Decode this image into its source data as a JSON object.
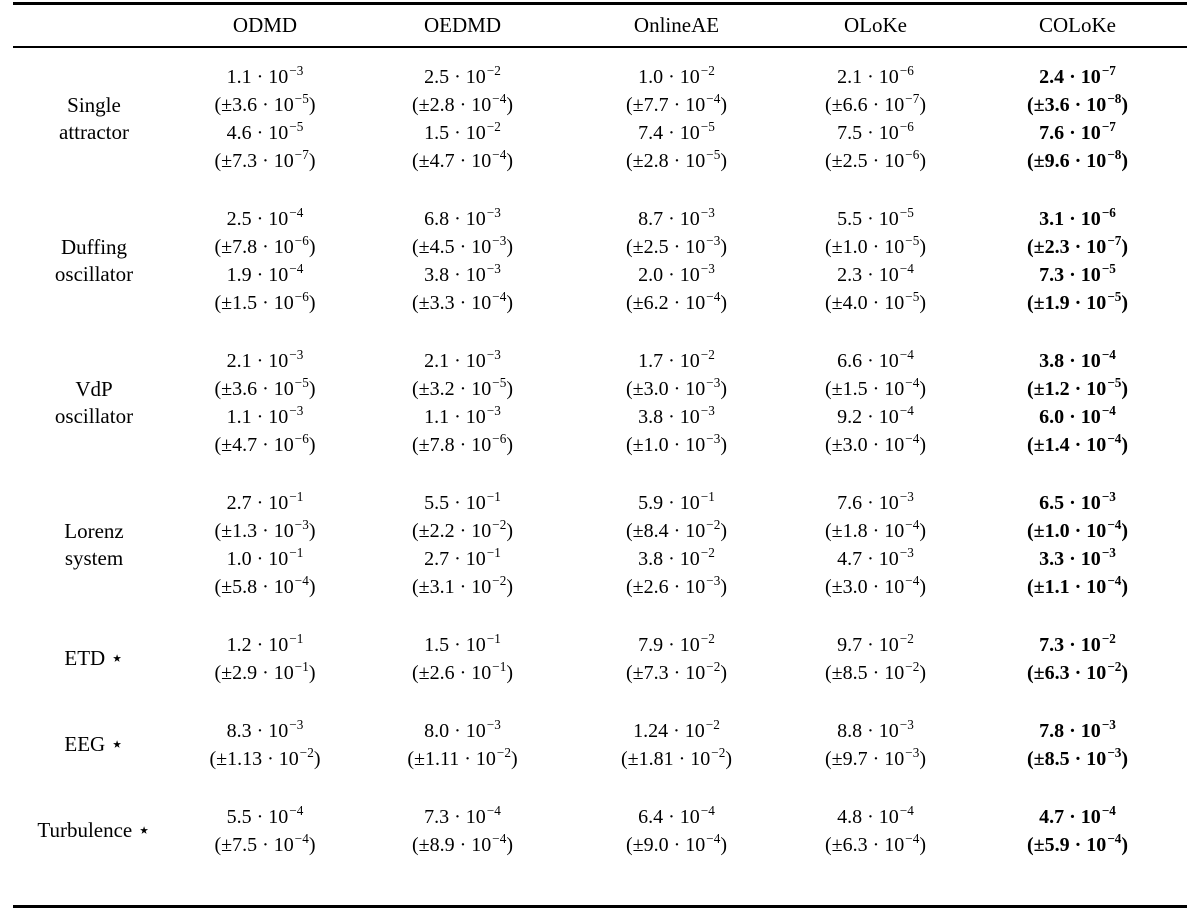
{
  "colors": {
    "background": "#ffffff",
    "text": "#000000",
    "rule": "#000000"
  },
  "table": {
    "columns": [
      "ODMD",
      "OEDMD",
      "OnlineAE",
      "OLoKe",
      "COLoKe"
    ],
    "bold_column": "COLoKe",
    "bold_column_index": 4,
    "rows": [
      {
        "label": "Single attractor",
        "label_lines": [
          "Single",
          "attractor"
        ],
        "cols": [
          [
            {
              "v": "1.1",
              "x": "-3"
            },
            {
              "v": "3.6",
              "x": "-5",
              "pm": true
            },
            {
              "v": "4.6",
              "x": "-5"
            },
            {
              "v": "7.3",
              "x": "-7",
              "pm": true
            }
          ],
          [
            {
              "v": "2.5",
              "x": "-2"
            },
            {
              "v": "2.8",
              "x": "-4",
              "pm": true
            },
            {
              "v": "1.5",
              "x": "-2"
            },
            {
              "v": "4.7",
              "x": "-4",
              "pm": true
            }
          ],
          [
            {
              "v": "1.0",
              "x": "-2"
            },
            {
              "v": "7.7",
              "x": "-4",
              "pm": true
            },
            {
              "v": "7.4",
              "x": "-5"
            },
            {
              "v": "2.8",
              "x": "-5",
              "pm": true
            }
          ],
          [
            {
              "v": "2.1",
              "x": "-6"
            },
            {
              "v": "6.6",
              "x": "-7",
              "pm": true
            },
            {
              "v": "7.5",
              "x": "-6"
            },
            {
              "v": "2.5",
              "x": "-6",
              "pm": true
            }
          ],
          [
            {
              "v": "2.4",
              "x": "-7"
            },
            {
              "v": "3.6",
              "x": "-8",
              "pm": true
            },
            {
              "v": "7.6",
              "x": "-7"
            },
            {
              "v": "9.6",
              "x": "-8",
              "pm": true
            }
          ]
        ]
      },
      {
        "label": "Duffing oscillator",
        "label_lines": [
          "Duffing",
          "oscillator"
        ],
        "cols": [
          [
            {
              "v": "2.5",
              "x": "-4"
            },
            {
              "v": "7.8",
              "x": "-6",
              "pm": true
            },
            {
              "v": "1.9",
              "x": "-4"
            },
            {
              "v": "1.5",
              "x": "-6",
              "pm": true
            }
          ],
          [
            {
              "v": "6.8",
              "x": "-3"
            },
            {
              "v": "4.5",
              "x": "-3",
              "pm": true
            },
            {
              "v": "3.8",
              "x": "-3"
            },
            {
              "v": "3.3",
              "x": "-4",
              "pm": true
            }
          ],
          [
            {
              "v": "8.7",
              "x": "-3"
            },
            {
              "v": "2.5",
              "x": "-3",
              "pm": true
            },
            {
              "v": "2.0",
              "x": "-3"
            },
            {
              "v": "6.2",
              "x": "-4",
              "pm": true
            }
          ],
          [
            {
              "v": "5.5",
              "x": "-5"
            },
            {
              "v": "1.0",
              "x": "-5",
              "pm": true
            },
            {
              "v": "2.3",
              "x": "-4"
            },
            {
              "v": "4.0",
              "x": "-5",
              "pm": true
            }
          ],
          [
            {
              "v": "3.1",
              "x": "-6"
            },
            {
              "v": "2.3",
              "x": "-7",
              "pm": true
            },
            {
              "v": "7.3",
              "x": "-5"
            },
            {
              "v": "1.9",
              "x": "-5",
              "pm": true
            }
          ]
        ]
      },
      {
        "label": "VdP oscillator",
        "label_lines": [
          "VdP",
          "oscillator"
        ],
        "cols": [
          [
            {
              "v": "2.1",
              "x": "-3"
            },
            {
              "v": "3.6",
              "x": "-5",
              "pm": true
            },
            {
              "v": "1.1",
              "x": "-3"
            },
            {
              "v": "4.7",
              "x": "-6",
              "pm": true
            }
          ],
          [
            {
              "v": "2.1",
              "x": "-3"
            },
            {
              "v": "3.2",
              "x": "-5",
              "pm": true
            },
            {
              "v": "1.1",
              "x": "-3"
            },
            {
              "v": "7.8",
              "x": "-6",
              "pm": true
            }
          ],
          [
            {
              "v": "1.7",
              "x": "-2"
            },
            {
              "v": "3.0",
              "x": "-3",
              "pm": true
            },
            {
              "v": "3.8",
              "x": "-3"
            },
            {
              "v": "1.0",
              "x": "-3",
              "pm": true
            }
          ],
          [
            {
              "v": "6.6",
              "x": "-4"
            },
            {
              "v": "1.5",
              "x": "-4",
              "pm": true
            },
            {
              "v": "9.2",
              "x": "-4"
            },
            {
              "v": "3.0",
              "x": "-4",
              "pm": true
            }
          ],
          [
            {
              "v": "3.8",
              "x": "-4"
            },
            {
              "v": "1.2",
              "x": "-5",
              "pm": true
            },
            {
              "v": "6.0",
              "x": "-4"
            },
            {
              "v": "1.4",
              "x": "-4",
              "pm": true
            }
          ]
        ]
      },
      {
        "label": "Lorenz system",
        "label_lines": [
          "Lorenz",
          "system"
        ],
        "cols": [
          [
            {
              "v": "2.7",
              "x": "-1"
            },
            {
              "v": "1.3",
              "x": "-3",
              "pm": true
            },
            {
              "v": "1.0",
              "x": "-1"
            },
            {
              "v": "5.8",
              "x": "-4",
              "pm": true
            }
          ],
          [
            {
              "v": "5.5",
              "x": "-1"
            },
            {
              "v": "2.2",
              "x": "-2",
              "pm": true
            },
            {
              "v": "2.7",
              "x": "-1"
            },
            {
              "v": "3.1",
              "x": "-2",
              "pm": true
            }
          ],
          [
            {
              "v": "5.9",
              "x": "-1"
            },
            {
              "v": "8.4",
              "x": "-2",
              "pm": true
            },
            {
              "v": "3.8",
              "x": "-2"
            },
            {
              "v": "2.6",
              "x": "-3",
              "pm": true
            }
          ],
          [
            {
              "v": "7.6",
              "x": "-3"
            },
            {
              "v": "1.8",
              "x": "-4",
              "pm": true
            },
            {
              "v": "4.7",
              "x": "-3"
            },
            {
              "v": "3.0",
              "x": "-4",
              "pm": true
            }
          ],
          [
            {
              "v": "6.5",
              "x": "-3"
            },
            {
              "v": "1.0",
              "x": "-4",
              "pm": true
            },
            {
              "v": "3.3",
              "x": "-3"
            },
            {
              "v": "1.1",
              "x": "-4",
              "pm": true
            }
          ]
        ]
      },
      {
        "label": "ETD ⋆",
        "label_lines": [
          "ETD ⋆"
        ],
        "cols": [
          [
            {
              "v": "1.2",
              "x": "-1"
            },
            {
              "v": "2.9",
              "x": "-1",
              "pm": true
            }
          ],
          [
            {
              "v": "1.5",
              "x": "-1"
            },
            {
              "v": "2.6",
              "x": "-1",
              "pm": true
            }
          ],
          [
            {
              "v": "7.9",
              "x": "-2"
            },
            {
              "v": "7.3",
              "x": "-2",
              "pm": true
            }
          ],
          [
            {
              "v": "9.7",
              "x": "-2"
            },
            {
              "v": "8.5",
              "x": "-2",
              "pm": true
            }
          ],
          [
            {
              "v": "7.3",
              "x": "-2"
            },
            {
              "v": "6.3",
              "x": "-2",
              "pm": true
            }
          ]
        ]
      },
      {
        "label": "EEG ⋆",
        "label_lines": [
          "EEG ⋆"
        ],
        "cols": [
          [
            {
              "v": "8.3",
              "x": "-3"
            },
            {
              "v": "1.13",
              "x": "-2",
              "pm": true
            }
          ],
          [
            {
              "v": "8.0",
              "x": "-3"
            },
            {
              "v": "1.11",
              "x": "-2",
              "pm": true
            }
          ],
          [
            {
              "v": "1.24",
              "x": "-2"
            },
            {
              "v": "1.81",
              "x": "-2",
              "pm": true
            }
          ],
          [
            {
              "v": "8.8",
              "x": "-3"
            },
            {
              "v": "9.7",
              "x": "-3",
              "pm": true
            }
          ],
          [
            {
              "v": "7.8",
              "x": "-3"
            },
            {
              "v": "8.5",
              "x": "-3",
              "pm": true
            }
          ]
        ]
      },
      {
        "label": "Turbulence ⋆",
        "label_lines": [
          "Turbulence ⋆"
        ],
        "cols": [
          [
            {
              "v": "5.5",
              "x": "-4"
            },
            {
              "v": "7.5",
              "x": "-4",
              "pm": true
            }
          ],
          [
            {
              "v": "7.3",
              "x": "-4"
            },
            {
              "v": "8.9",
              "x": "-4",
              "pm": true
            }
          ],
          [
            {
              "v": "6.4",
              "x": "-4"
            },
            {
              "v": "9.0",
              "x": "-4",
              "pm": true
            }
          ],
          [
            {
              "v": "4.8",
              "x": "-4"
            },
            {
              "v": "6.3",
              "x": "-4",
              "pm": true
            }
          ],
          [
            {
              "v": "4.7",
              "x": "-4"
            },
            {
              "v": "5.9",
              "x": "-4",
              "pm": true
            }
          ]
        ]
      }
    ]
  }
}
